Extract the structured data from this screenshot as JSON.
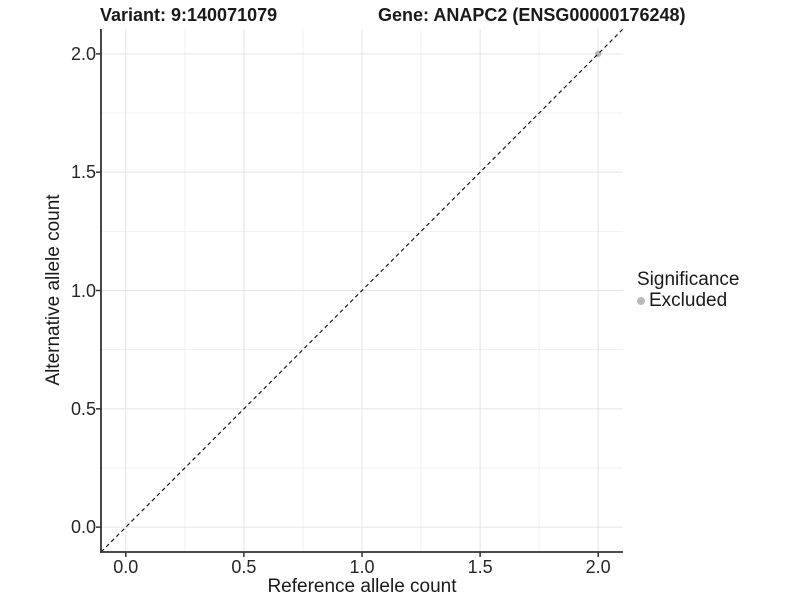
{
  "chart_data": {
    "type": "scatter",
    "titles": [
      "Variant: 9:140071079",
      "Gene: ANAPC2 (ENSG00000176248)"
    ],
    "xlabel": "Reference allele count",
    "ylabel": "Alternative allele count",
    "xlim": [
      -0.105,
      2.105
    ],
    "ylim": [
      -0.105,
      2.105
    ],
    "x_ticks": {
      "values": [
        0,
        0.5,
        1.0,
        1.5,
        2.0
      ],
      "labels": [
        "0.0",
        "0.5",
        "1.0",
        "1.5",
        "2.0"
      ]
    },
    "y_ticks": {
      "values": [
        0,
        0.5,
        1.0,
        1.5,
        2.0
      ],
      "labels": [
        "0.0",
        "0.5",
        "1.0",
        "1.5",
        "2.0"
      ]
    },
    "x_minor": [
      0.25,
      0.75,
      1.25,
      1.75
    ],
    "y_minor": [
      0.25,
      0.75,
      1.25,
      1.75
    ],
    "grid": true,
    "reference_line": {
      "type": "identity-diagonal",
      "style": "dashed",
      "color": "#1a1a1a"
    },
    "series": [
      {
        "name": "Excluded",
        "color": "#b9b9b9",
        "points": [
          {
            "x": 2.0,
            "y": 2.0
          }
        ]
      }
    ],
    "legend": {
      "title": "Significance",
      "position": "right",
      "items": [
        {
          "label": "Excluded",
          "color": "#b9b9b9"
        }
      ]
    },
    "colors": {
      "grid_major": "#e3e3e3",
      "grid_minor": "#f1f1f1",
      "axis_line": "#333333",
      "tick_mark": "#333333",
      "point": "#b9b9b9",
      "background": "#ffffff"
    }
  }
}
